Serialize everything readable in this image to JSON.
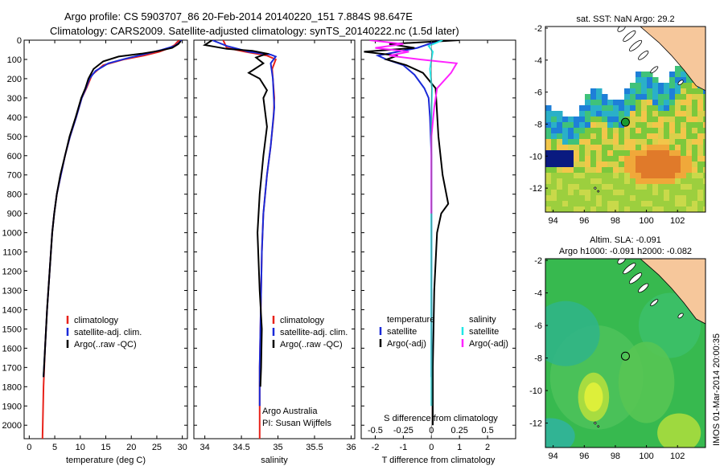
{
  "header": {
    "title_line1": "Argo profile: CS 5903707_86 20-Feb-2014 20140220_151 7.884S 98.647E",
    "title_line2": "Climatology: CARS2009. Satellite-adjusted climatology: synTS_20140222.nc (1.5d later)"
  },
  "colors": {
    "climatology": "#e8221a",
    "satellite_adj": "#1a2ad8",
    "argo": "#000000",
    "salinity_satellite": "#20e6e6",
    "salinity_argo": "#ff22ff",
    "land": "#f6c79b"
  },
  "chart_data": [
    {
      "type": "line",
      "id": "temperature",
      "xlabel": "temperature (deg C)",
      "ylabel": "",
      "xlim": [
        -1,
        31
      ],
      "ylim": [
        2070,
        0
      ],
      "y_reversed": true,
      "xticks": [
        0,
        5,
        10,
        15,
        20,
        25,
        30
      ],
      "yticks": [
        0,
        100,
        200,
        300,
        400,
        500,
        600,
        700,
        800,
        900,
        1000,
        1100,
        1200,
        1300,
        1400,
        1500,
        1600,
        1700,
        1800,
        1900,
        2000
      ],
      "legend": [
        "climatology",
        "satellite-adj. clim.",
        "Argo(..raw -QC)"
      ],
      "series": [
        {
          "name": "climatology",
          "color_key": "climatology",
          "x": [
            29.5,
            29.0,
            28.5,
            27.5,
            25.5,
            22.5,
            18.5,
            14.5,
            12.3,
            11.2,
            10.3,
            9.2,
            8.0,
            7.0,
            6.2,
            5.4,
            4.9,
            4.5,
            4.0,
            3.5,
            3.1,
            2.8,
            2.6
          ],
          "y": [
            0,
            10,
            25,
            40,
            60,
            80,
            100,
            130,
            180,
            250,
            300,
            400,
            500,
            600,
            700,
            800,
            900,
            1000,
            1200,
            1400,
            1600,
            1800,
            2070
          ]
        },
        {
          "name": "satellite-adj. clim.",
          "color_key": "satellite_adj",
          "x": [
            29.8,
            29.3,
            28.5,
            26.0,
            23.0,
            19.0,
            15.5,
            13.0,
            11.8,
            11.1,
            10.3,
            9.2,
            8.0,
            7.0,
            6.2,
            5.4,
            4.9,
            4.5,
            4.0,
            3.5,
            3.1,
            2.8
          ],
          "y": [
            0,
            15,
            30,
            50,
            70,
            95,
            120,
            160,
            200,
            250,
            300,
            400,
            500,
            600,
            700,
            800,
            900,
            1000,
            1200,
            1400,
            1600,
            1750
          ]
        },
        {
          "name": "Argo(..raw -QC)",
          "color_key": "argo",
          "x": [
            29.7,
            29.2,
            28.0,
            25.5,
            22.0,
            17.5,
            14.5,
            12.6,
            11.6,
            11.0,
            10.2,
            9.1,
            7.9,
            7.0,
            6.1,
            5.4,
            4.9,
            4.5,
            4.0,
            3.5,
            3.1,
            2.8
          ],
          "y": [
            5,
            20,
            40,
            55,
            70,
            85,
            110,
            150,
            200,
            250,
            300,
            400,
            500,
            600,
            700,
            800,
            900,
            1000,
            1200,
            1400,
            1600,
            1750
          ]
        }
      ]
    },
    {
      "type": "line",
      "id": "salinity",
      "xlabel": "salinity",
      "xlim": [
        33.85,
        36.05
      ],
      "ylim": [
        2070,
        0
      ],
      "y_reversed": true,
      "xticks": [
        34,
        34.5,
        35,
        35.5,
        36
      ],
      "legend": [
        "climatology",
        "satellite-adj. clim.",
        "Argo(..raw -QC)"
      ],
      "annotation": [
        "Argo Australia",
        "PI: Susan Wijffels"
      ],
      "series": [
        {
          "name": "climatology",
          "color_key": "climatology",
          "x": [
            34.25,
            34.3,
            34.55,
            34.85,
            34.97,
            34.92,
            34.95,
            34.94,
            34.9,
            34.85,
            34.8,
            34.78,
            34.77,
            34.76,
            34.75,
            34.75,
            34.75
          ],
          "y": [
            0,
            40,
            60,
            80,
            100,
            150,
            300,
            400,
            550,
            700,
            900,
            1100,
            1300,
            1500,
            1700,
            1900,
            2070
          ]
        },
        {
          "name": "satellite-adj. clim.",
          "color_key": "satellite_adj",
          "x": [
            34.1,
            34.3,
            34.5,
            34.6,
            34.9,
            34.97,
            34.9,
            34.93,
            34.95,
            34.9,
            34.85,
            34.8,
            34.78,
            34.77,
            34.76,
            34.75,
            34.75
          ],
          "y": [
            0,
            30,
            50,
            60,
            75,
            85,
            120,
            200,
            350,
            550,
            700,
            900,
            1100,
            1300,
            1500,
            1700,
            1900
          ]
        },
        {
          "name": "Argo(..raw -QC)",
          "color_key": "argo",
          "x": [
            34.1,
            34.0,
            34.3,
            34.65,
            34.85,
            34.7,
            34.8,
            34.6,
            34.75,
            34.85,
            34.8,
            34.85,
            34.8,
            34.75,
            34.72,
            34.75,
            34.78,
            34.77,
            34.76
          ],
          "y": [
            0,
            25,
            45,
            55,
            70,
            90,
            120,
            170,
            200,
            260,
            300,
            450,
            600,
            800,
            1000,
            1300,
            1500,
            1700,
            1800
          ]
        }
      ]
    },
    {
      "type": "line",
      "id": "difference",
      "xlabel": "T difference from climatology",
      "xlabel_top": "S difference from climatology",
      "xticks": [
        -2,
        -1,
        0,
        1,
        2
      ],
      "xticks_top": [
        "-0.5",
        "-0.25",
        "0",
        "0.25",
        "0.5"
      ],
      "xlim": [
        -2.5,
        3.0
      ],
      "ylim": [
        2070,
        0
      ],
      "y_reversed": true,
      "legend_groups": [
        {
          "heading": "temperature",
          "items": [
            "satellite",
            "Argo(-adj)"
          ]
        },
        {
          "heading": "salinity",
          "items": [
            "satellite",
            "Argo(-adj)"
          ]
        }
      ],
      "series": [
        {
          "name": "temperature satellite",
          "color_key": "satellite_adj",
          "x": [
            0.3,
            -0.5,
            -1.2,
            -1.9,
            -1.6,
            -1.0,
            -0.6,
            -0.25,
            -0.1,
            -0.05,
            0,
            0,
            0,
            0,
            0
          ],
          "y": [
            0,
            40,
            60,
            80,
            100,
            130,
            180,
            250,
            300,
            400,
            600,
            900,
            1200,
            1600,
            1750
          ]
        },
        {
          "name": "temperature Argo(-adj)",
          "color_key": "argo",
          "x": [
            1.0,
            -1.5,
            -0.6,
            -2.4,
            -1.2,
            -1.6,
            -0.9,
            -0.3,
            0.15,
            0.25,
            0.4,
            0.6,
            0.35,
            0.2,
            0.1,
            0.05,
            0.05
          ],
          "y": [
            0,
            20,
            40,
            60,
            80,
            100,
            130,
            170,
            250,
            500,
            700,
            850,
            900,
            1000,
            1300,
            1700,
            2000
          ]
        },
        {
          "name": "salinity satellite",
          "color_key": "salinity_satellite",
          "x": [
            0.4,
            -0.1,
            0.05,
            0.0,
            -0.05,
            0.02,
            0.0,
            0.0,
            0.0,
            0.0,
            0.0
          ],
          "y": [
            0,
            30,
            60,
            100,
            150,
            250,
            400,
            700,
            1100,
            1500,
            1900
          ]
        },
        {
          "name": "salinity Argo(-adj)",
          "color_key": "salinity_argo",
          "x": [
            -2.2,
            -1.0,
            -2.0,
            -0.8,
            -1.5,
            -0.4,
            0.9,
            0.7,
            0.2,
            0.1,
            0.0,
            0.0,
            0.0
          ],
          "y": [
            0,
            20,
            40,
            60,
            80,
            100,
            120,
            170,
            250,
            350,
            500,
            700,
            900
          ]
        }
      ]
    },
    {
      "type": "heatmap",
      "id": "sst_map",
      "title": "sat. SST: NaN Argo: 29.2",
      "xlim": [
        93.5,
        103.8
      ],
      "ylim": [
        -13.5,
        -1.9
      ],
      "xticks": [
        94,
        96,
        98,
        100,
        102
      ],
      "yticks": [
        -2,
        -4,
        -6,
        -8,
        -10,
        -12
      ],
      "argo_position": {
        "lon": 98.647,
        "lat": -7.884
      }
    },
    {
      "type": "heatmap",
      "id": "sla_map",
      "title_line1": "Altim. SLA: -0.091",
      "title_line2": "Argo h1000: -0.091 h2000: -0.082",
      "xlim": [
        93.5,
        103.8
      ],
      "ylim": [
        -13.5,
        -1.9
      ],
      "xticks": [
        94,
        96,
        98,
        100,
        102
      ],
      "yticks": [
        -2,
        -4,
        -6,
        -8,
        -10,
        -12
      ],
      "argo_position": {
        "lon": 98.647,
        "lat": -7.884
      }
    }
  ],
  "footer": {
    "imos_stamp": "IMOS 01-Mar-2014 20:00:35"
  }
}
